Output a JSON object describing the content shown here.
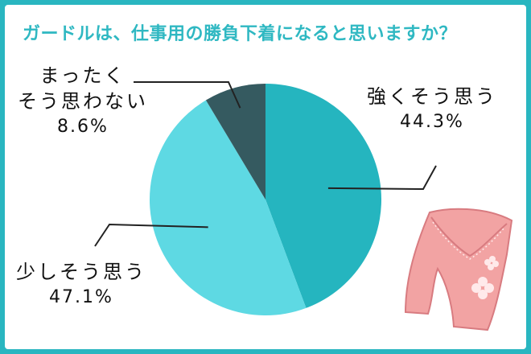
{
  "chart_data": {
    "type": "pie",
    "title": "ガードルは、仕事用の勝負下着になると思いますか？",
    "slices": [
      {
        "name": "強くそう思う",
        "value": 44.3,
        "value_label": "44.3%",
        "color": "#25b5bf"
      },
      {
        "name": "少しそう思う",
        "value": 47.1,
        "value_label": "47.1%",
        "color": "#5ed9e3"
      },
      {
        "name_lines": [
          "まったく",
          "そう思わない"
        ],
        "value": 8.6,
        "value_label": "8.6%",
        "color": "#355a60"
      }
    ],
    "start": "top",
    "direction": "clockwise"
  },
  "illustration": {
    "icon": "girdle-icon",
    "colors": {
      "body": "#f2a3a3",
      "outline": "#d87b80",
      "flower": "#ffe9ea"
    }
  }
}
